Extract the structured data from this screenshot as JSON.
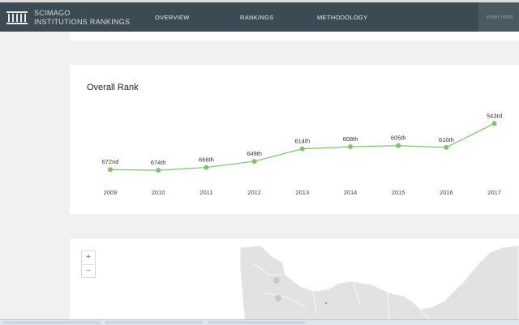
{
  "header": {
    "brand_line1": "SCIMAGO",
    "brand_line2": "INSTITUTIONS RANKINGS",
    "nav": [
      "OVERVIEW",
      "RANKINGS",
      "METHODOLOGY"
    ],
    "search_placeholder": "enter instit",
    "bg_color": "#3b4a53"
  },
  "overall_rank": {
    "title": "Overall Rank"
  },
  "chart_data": {
    "type": "line",
    "title": "Overall Rank",
    "x": [
      "2009",
      "2010",
      "2011",
      "2012",
      "2013",
      "2014",
      "2015",
      "2016",
      "2017"
    ],
    "values": [
      672,
      674,
      666,
      649,
      614,
      608,
      605,
      610,
      543
    ],
    "labels": [
      "672nd",
      "674th",
      "666th",
      "649th",
      "614th",
      "608th",
      "605th",
      "610th",
      "543rd"
    ],
    "y_inverted": true,
    "grid": false,
    "color": "#7cc36a"
  },
  "map": {
    "zoom_in": "+",
    "zoom_out": "−"
  }
}
